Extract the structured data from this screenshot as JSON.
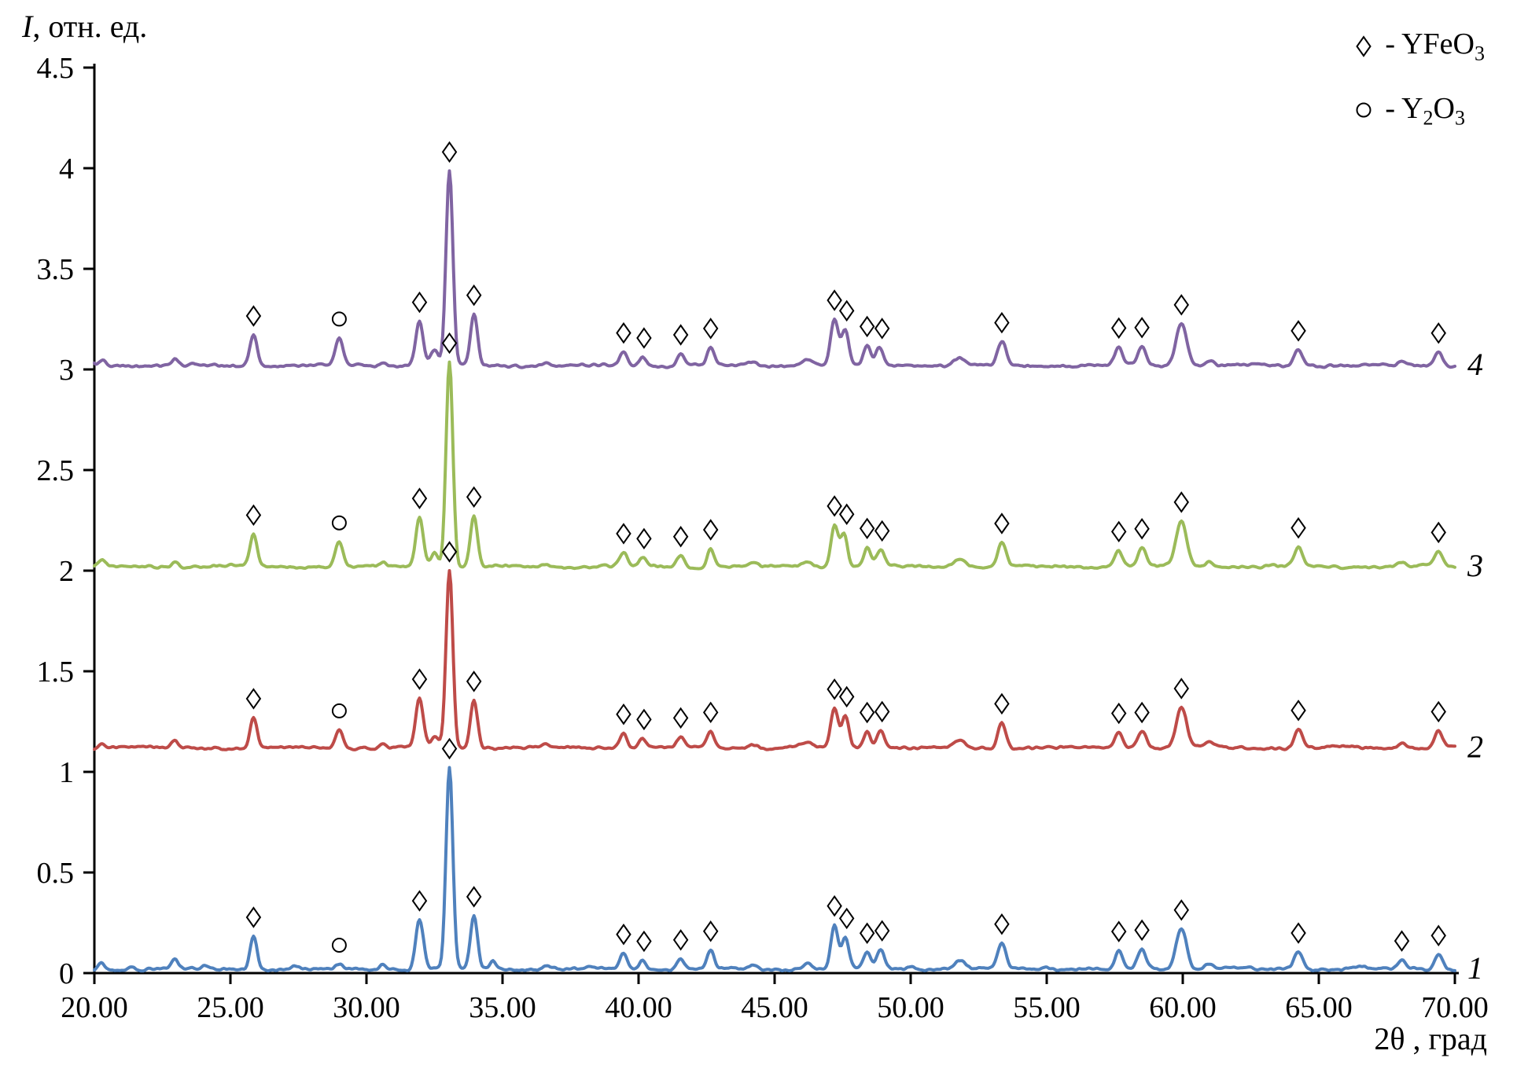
{
  "chart_data": {
    "type": "line",
    "title": "",
    "xlabel": "2θ , град",
    "ylabel": {
      "italic": "I",
      "rest": ", отн. ед."
    },
    "xlim": [
      20,
      70
    ],
    "ylim": [
      0,
      4.5
    ],
    "grid": false,
    "legend_position": "top-right",
    "x_tick_values": [
      20,
      25,
      30,
      35,
      40,
      45,
      50,
      55,
      60,
      65,
      70
    ],
    "x_tick_labels": [
      "20.00",
      "25.00",
      "30.00",
      "35.00",
      "40.00",
      "45.00",
      "50.00",
      "55.00",
      "60.00",
      "65.00",
      "70.00"
    ],
    "y_tick_values": [
      0,
      0.5,
      1,
      1.5,
      2,
      2.5,
      3,
      3.5,
      4,
      4.5
    ],
    "y_tick_labels": [
      "0",
      "0.5",
      "1",
      "1.5",
      "2",
      "2.5",
      "3",
      "3.5",
      "4",
      "4.5"
    ],
    "legend": [
      {
        "key": "yfeo3",
        "symbol": "diamond",
        "parts": [
          {
            "t": "- YFeO"
          },
          {
            "s": "3"
          }
        ]
      },
      {
        "key": "y2o3",
        "symbol": "circle",
        "parts": [
          {
            "t": "- Y"
          },
          {
            "s": "2"
          },
          {
            "t": "O"
          },
          {
            "s": "3"
          }
        ]
      }
    ],
    "marker_meaning": {
      "diamond": "YFeO3",
      "circle": "Y2O3"
    },
    "series": [
      {
        "id": 1,
        "label": "1",
        "color": "#4F81BD",
        "offset": 0.02,
        "peaks": [
          [
            20.25,
            0.035,
            0.1
          ],
          [
            21.4,
            0.012,
            0.12
          ],
          [
            22.95,
            0.05,
            0.12
          ],
          [
            24.1,
            0.012,
            0.12
          ],
          [
            25.85,
            0.165,
            0.13
          ],
          [
            27.4,
            0.012,
            0.14
          ],
          [
            29.0,
            0.022,
            0.14
          ],
          [
            30.6,
            0.028,
            0.12
          ],
          [
            31.95,
            0.25,
            0.14
          ],
          [
            33.05,
            1.0,
            0.125
          ],
          [
            33.95,
            0.26,
            0.13
          ],
          [
            34.65,
            0.04,
            0.12
          ],
          [
            36.6,
            0.018,
            0.15
          ],
          [
            38.2,
            0.015,
            0.15
          ],
          [
            39.45,
            0.08,
            0.13
          ],
          [
            40.15,
            0.05,
            0.12
          ],
          [
            41.55,
            0.055,
            0.13
          ],
          [
            42.65,
            0.09,
            0.13
          ],
          [
            44.2,
            0.02,
            0.15
          ],
          [
            46.2,
            0.028,
            0.18
          ],
          [
            47.2,
            0.215,
            0.13
          ],
          [
            47.6,
            0.15,
            0.13
          ],
          [
            48.4,
            0.08,
            0.13
          ],
          [
            48.9,
            0.095,
            0.14
          ],
          [
            50.0,
            0.015,
            0.15
          ],
          [
            51.8,
            0.04,
            0.2
          ],
          [
            53.35,
            0.13,
            0.15
          ],
          [
            55.0,
            0.012,
            0.2
          ],
          [
            57.65,
            0.085,
            0.14
          ],
          [
            58.5,
            0.1,
            0.15
          ],
          [
            59.95,
            0.205,
            0.19
          ],
          [
            61.0,
            0.03,
            0.15
          ],
          [
            64.25,
            0.095,
            0.15
          ],
          [
            66.5,
            0.012,
            0.18
          ],
          [
            68.05,
            0.05,
            0.13
          ],
          [
            69.4,
            0.08,
            0.14
          ]
        ],
        "markers": [
          [
            25.85,
            "d"
          ],
          [
            29.0,
            "c"
          ],
          [
            31.95,
            "d"
          ],
          [
            33.05,
            "d"
          ],
          [
            33.95,
            "d"
          ],
          [
            39.45,
            "d"
          ],
          [
            40.2,
            "d"
          ],
          [
            41.55,
            "d"
          ],
          [
            42.65,
            "d"
          ],
          [
            47.2,
            "d"
          ],
          [
            47.65,
            "d"
          ],
          [
            48.4,
            "d"
          ],
          [
            48.95,
            "d"
          ],
          [
            53.35,
            "d"
          ],
          [
            57.65,
            "d"
          ],
          [
            58.5,
            "d"
          ],
          [
            59.95,
            "d"
          ],
          [
            64.25,
            "d"
          ],
          [
            68.05,
            "d"
          ],
          [
            69.4,
            "d"
          ]
        ]
      },
      {
        "id": 2,
        "label": "2",
        "color": "#BE4B48",
        "offset": 1.12,
        "peaks": [
          [
            20.25,
            0.02,
            0.1
          ],
          [
            22.95,
            0.035,
            0.12
          ],
          [
            25.85,
            0.15,
            0.13
          ],
          [
            29.0,
            0.095,
            0.14
          ],
          [
            30.6,
            0.02,
            0.12
          ],
          [
            31.95,
            0.24,
            0.14
          ],
          [
            32.5,
            0.05,
            0.13
          ],
          [
            33.05,
            0.88,
            0.125
          ],
          [
            33.95,
            0.24,
            0.13
          ],
          [
            36.6,
            0.015,
            0.15
          ],
          [
            39.45,
            0.075,
            0.13
          ],
          [
            40.15,
            0.045,
            0.12
          ],
          [
            41.55,
            0.05,
            0.13
          ],
          [
            42.65,
            0.085,
            0.13
          ],
          [
            44.2,
            0.018,
            0.15
          ],
          [
            46.2,
            0.03,
            0.18
          ],
          [
            47.2,
            0.2,
            0.13
          ],
          [
            47.6,
            0.16,
            0.13
          ],
          [
            48.4,
            0.085,
            0.13
          ],
          [
            48.9,
            0.09,
            0.14
          ],
          [
            51.8,
            0.035,
            0.2
          ],
          [
            53.35,
            0.125,
            0.15
          ],
          [
            57.65,
            0.08,
            0.14
          ],
          [
            58.5,
            0.09,
            0.15
          ],
          [
            59.95,
            0.2,
            0.19
          ],
          [
            61.0,
            0.025,
            0.15
          ],
          [
            64.25,
            0.09,
            0.15
          ],
          [
            68.05,
            0.022,
            0.13
          ],
          [
            69.4,
            0.085,
            0.14
          ]
        ],
        "markers": [
          [
            25.85,
            "d"
          ],
          [
            29.0,
            "c"
          ],
          [
            31.95,
            "d"
          ],
          [
            33.05,
            "d"
          ],
          [
            33.95,
            "d"
          ],
          [
            39.45,
            "d"
          ],
          [
            40.2,
            "d"
          ],
          [
            41.55,
            "d"
          ],
          [
            42.65,
            "d"
          ],
          [
            47.2,
            "d"
          ],
          [
            47.65,
            "d"
          ],
          [
            48.4,
            "d"
          ],
          [
            48.95,
            "d"
          ],
          [
            53.35,
            "d"
          ],
          [
            57.65,
            "d"
          ],
          [
            58.5,
            "d"
          ],
          [
            59.95,
            "d"
          ],
          [
            64.25,
            "d"
          ],
          [
            69.4,
            "d"
          ]
        ]
      },
      {
        "id": 3,
        "label": "3",
        "color": "#9BBB59",
        "offset": 2.02,
        "peaks": [
          [
            20.3,
            0.03,
            0.12
          ],
          [
            22.95,
            0.03,
            0.12
          ],
          [
            25.85,
            0.155,
            0.13
          ],
          [
            29.0,
            0.125,
            0.14
          ],
          [
            30.6,
            0.02,
            0.12
          ],
          [
            31.95,
            0.245,
            0.14
          ],
          [
            32.5,
            0.07,
            0.13
          ],
          [
            33.05,
            1.02,
            0.125
          ],
          [
            33.95,
            0.25,
            0.13
          ],
          [
            36.6,
            0.015,
            0.15
          ],
          [
            39.45,
            0.07,
            0.14
          ],
          [
            40.15,
            0.045,
            0.12
          ],
          [
            41.55,
            0.06,
            0.14
          ],
          [
            42.65,
            0.09,
            0.13
          ],
          [
            44.2,
            0.02,
            0.15
          ],
          [
            46.2,
            0.03,
            0.18
          ],
          [
            47.2,
            0.21,
            0.13
          ],
          [
            47.55,
            0.16,
            0.13
          ],
          [
            48.4,
            0.09,
            0.13
          ],
          [
            48.9,
            0.085,
            0.14
          ],
          [
            51.8,
            0.04,
            0.2
          ],
          [
            53.35,
            0.12,
            0.15
          ],
          [
            57.65,
            0.08,
            0.14
          ],
          [
            58.5,
            0.095,
            0.15
          ],
          [
            59.95,
            0.22,
            0.2
          ],
          [
            61.0,
            0.03,
            0.15
          ],
          [
            64.25,
            0.09,
            0.15
          ],
          [
            68.05,
            0.02,
            0.13
          ],
          [
            69.4,
            0.08,
            0.14
          ]
        ],
        "markers": [
          [
            25.85,
            "d"
          ],
          [
            29.0,
            "c"
          ],
          [
            31.95,
            "d"
          ],
          [
            33.05,
            "d"
          ],
          [
            33.95,
            "d"
          ],
          [
            39.45,
            "d"
          ],
          [
            40.2,
            "d"
          ],
          [
            41.55,
            "d"
          ],
          [
            42.65,
            "d"
          ],
          [
            47.2,
            "d"
          ],
          [
            47.65,
            "d"
          ],
          [
            48.4,
            "d"
          ],
          [
            48.95,
            "d"
          ],
          [
            53.35,
            "d"
          ],
          [
            57.65,
            "d"
          ],
          [
            58.5,
            "d"
          ],
          [
            59.95,
            "d"
          ],
          [
            64.25,
            "d"
          ],
          [
            69.4,
            "d"
          ]
        ]
      },
      {
        "id": 4,
        "label": "4",
        "color": "#8064A2",
        "offset": 3.02,
        "peaks": [
          [
            20.3,
            0.025,
            0.12
          ],
          [
            22.95,
            0.03,
            0.12
          ],
          [
            25.85,
            0.16,
            0.13
          ],
          [
            29.0,
            0.13,
            0.14
          ],
          [
            30.6,
            0.02,
            0.12
          ],
          [
            31.95,
            0.22,
            0.14
          ],
          [
            32.5,
            0.08,
            0.13
          ],
          [
            33.05,
            0.97,
            0.125
          ],
          [
            33.95,
            0.25,
            0.13
          ],
          [
            36.6,
            0.015,
            0.15
          ],
          [
            39.45,
            0.07,
            0.14
          ],
          [
            40.15,
            0.045,
            0.12
          ],
          [
            41.55,
            0.055,
            0.14
          ],
          [
            42.65,
            0.08,
            0.13
          ],
          [
            44.2,
            0.018,
            0.15
          ],
          [
            46.2,
            0.03,
            0.18
          ],
          [
            47.2,
            0.23,
            0.14
          ],
          [
            47.6,
            0.17,
            0.13
          ],
          [
            48.4,
            0.09,
            0.13
          ],
          [
            48.85,
            0.085,
            0.14
          ],
          [
            51.8,
            0.035,
            0.2
          ],
          [
            53.35,
            0.12,
            0.15
          ],
          [
            57.65,
            0.085,
            0.14
          ],
          [
            58.5,
            0.09,
            0.15
          ],
          [
            59.95,
            0.21,
            0.2
          ],
          [
            61.0,
            0.025,
            0.15
          ],
          [
            64.25,
            0.085,
            0.15
          ],
          [
            68.05,
            0.018,
            0.13
          ],
          [
            69.4,
            0.075,
            0.14
          ]
        ],
        "markers": [
          [
            25.85,
            "d"
          ],
          [
            29.0,
            "c"
          ],
          [
            31.95,
            "d"
          ],
          [
            33.05,
            "d"
          ],
          [
            33.95,
            "d"
          ],
          [
            39.45,
            "d"
          ],
          [
            40.2,
            "d"
          ],
          [
            41.55,
            "d"
          ],
          [
            42.65,
            "d"
          ],
          [
            47.2,
            "d"
          ],
          [
            47.65,
            "d"
          ],
          [
            48.4,
            "d"
          ],
          [
            48.95,
            "d"
          ],
          [
            53.35,
            "d"
          ],
          [
            57.65,
            "d"
          ],
          [
            58.5,
            "d"
          ],
          [
            59.95,
            "d"
          ],
          [
            64.25,
            "d"
          ],
          [
            69.4,
            "d"
          ]
        ]
      }
    ]
  }
}
